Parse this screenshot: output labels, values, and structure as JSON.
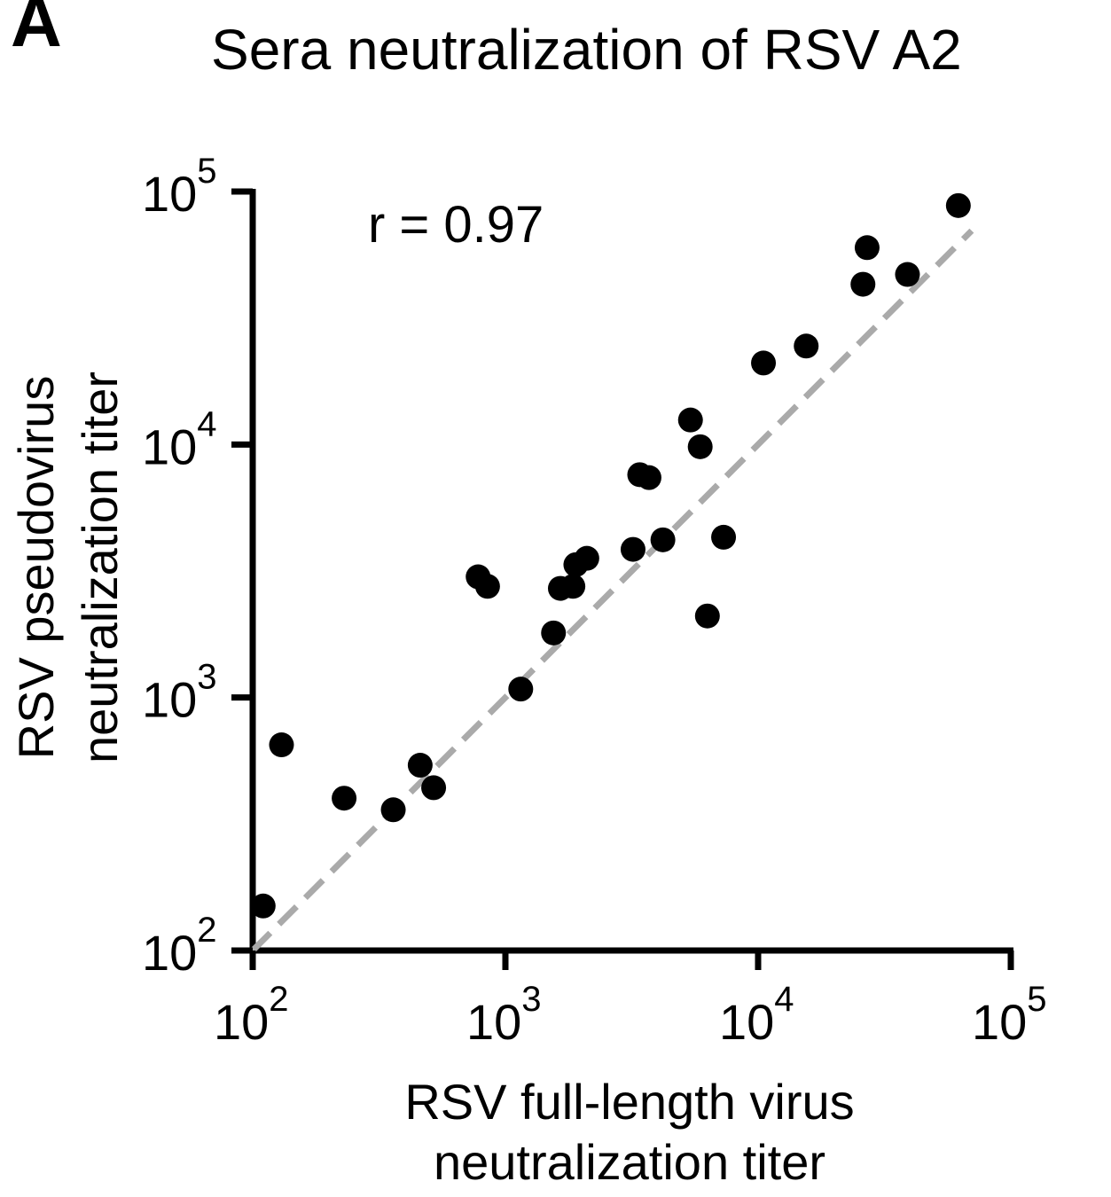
{
  "panel_label": "A",
  "chart_data": {
    "type": "scatter",
    "title": "Sera neutralization of RSV A2",
    "xlabel": [
      "RSV full-length virus",
      "neutralization titer"
    ],
    "ylabel": [
      "RSV pseudovirus",
      "neutralization titer"
    ],
    "xscale": "log",
    "yscale": "log",
    "xlim": [
      100,
      100000
    ],
    "ylim": [
      100,
      100000
    ],
    "x_ticks": [
      {
        "base": "10",
        "exp": "2",
        "value": 100
      },
      {
        "base": "10",
        "exp": "3",
        "value": 1000
      },
      {
        "base": "10",
        "exp": "4",
        "value": 10000
      },
      {
        "base": "10",
        "exp": "5",
        "value": 100000
      }
    ],
    "y_ticks": [
      {
        "base": "10",
        "exp": "2",
        "value": 100
      },
      {
        "base": "10",
        "exp": "3",
        "value": 1000
      },
      {
        "base": "10",
        "exp": "4",
        "value": 10000
      },
      {
        "base": "10",
        "exp": "5",
        "value": 100000
      }
    ],
    "annotation": "r = 0.97",
    "reference_line": {
      "style": "dashed",
      "color": "#aaaaaa",
      "from": [
        100,
        100
      ],
      "to": [
        70000,
        70000
      ]
    },
    "marker_color": "#000000",
    "grid": false,
    "points": [
      {
        "x": 110,
        "y": 150
      },
      {
        "x": 130,
        "y": 650
      },
      {
        "x": 230,
        "y": 400
      },
      {
        "x": 360,
        "y": 360
      },
      {
        "x": 460,
        "y": 540
      },
      {
        "x": 520,
        "y": 440
      },
      {
        "x": 780,
        "y": 3000
      },
      {
        "x": 850,
        "y": 2750
      },
      {
        "x": 1150,
        "y": 1080
      },
      {
        "x": 1550,
        "y": 1800
      },
      {
        "x": 1650,
        "y": 2700
      },
      {
        "x": 1850,
        "y": 2750
      },
      {
        "x": 1900,
        "y": 3350
      },
      {
        "x": 2100,
        "y": 3550
      },
      {
        "x": 3200,
        "y": 3850
      },
      {
        "x": 3400,
        "y": 7600
      },
      {
        "x": 3700,
        "y": 7400
      },
      {
        "x": 4200,
        "y": 4200
      },
      {
        "x": 5400,
        "y": 12500
      },
      {
        "x": 5900,
        "y": 9800
      },
      {
        "x": 6300,
        "y": 2100
      },
      {
        "x": 7300,
        "y": 4300
      },
      {
        "x": 10500,
        "y": 21000
      },
      {
        "x": 15500,
        "y": 24500
      },
      {
        "x": 26000,
        "y": 43000
      },
      {
        "x": 27000,
        "y": 60000
      },
      {
        "x": 39000,
        "y": 47000
      },
      {
        "x": 62000,
        "y": 88000
      }
    ]
  }
}
